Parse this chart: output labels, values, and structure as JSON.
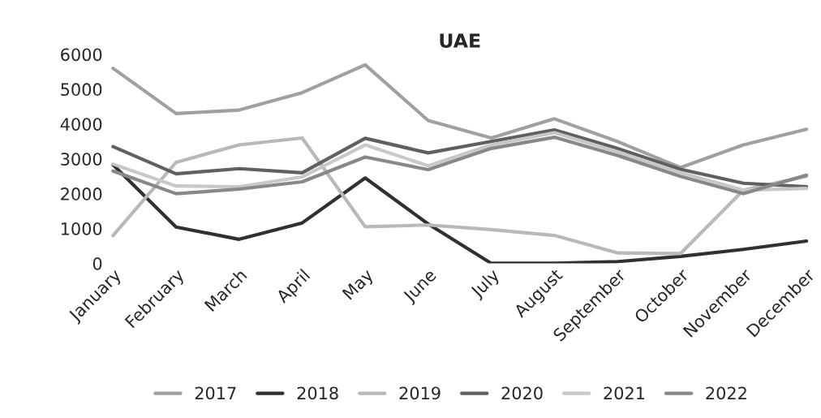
{
  "chart_data": {
    "type": "line",
    "title": "UAE",
    "categories": [
      "January",
      "February",
      "March",
      "April",
      "May",
      "June",
      "July",
      "August",
      "September",
      "October",
      "November",
      "December"
    ],
    "series": [
      {
        "name": "2017",
        "color": "#a0a0a0",
        "values": [
          5600,
          4300,
          4400,
          4900,
          5700,
          4100,
          3600,
          4150,
          3500,
          2750,
          3400,
          3850
        ]
      },
      {
        "name": "2018",
        "color": "#303030",
        "values": [
          2830,
          1040,
          690,
          1160,
          2450,
          1130,
          0,
          0,
          50,
          200,
          400,
          640
        ]
      },
      {
        "name": "2019",
        "color": "#b8b8b8",
        "values": [
          800,
          2900,
          3400,
          3600,
          1050,
          1100,
          970,
          800,
          300,
          280,
          2100,
          2500
        ]
      },
      {
        "name": "2020",
        "color": "#606060",
        "values": [
          3350,
          2570,
          2720,
          2600,
          3590,
          3170,
          3500,
          3830,
          3300,
          2700,
          2300,
          2200
        ]
      },
      {
        "name": "2021",
        "color": "#c8c8c8",
        "values": [
          2850,
          2220,
          2200,
          2480,
          3400,
          2800,
          3400,
          3750,
          3200,
          2600,
          2100,
          2150
        ]
      },
      {
        "name": "2022",
        "color": "#888888",
        "values": [
          2650,
          2000,
          2130,
          2340,
          3050,
          2690,
          3300,
          3620,
          3100,
          2500,
          2000,
          2530
        ]
      }
    ],
    "ylim": [
      0,
      6000
    ],
    "yticks": [
      0,
      1000,
      2000,
      3000,
      4000,
      5000,
      6000
    ],
    "grid": false,
    "legend": "bottom",
    "marker": "none",
    "line_style": "solid"
  }
}
